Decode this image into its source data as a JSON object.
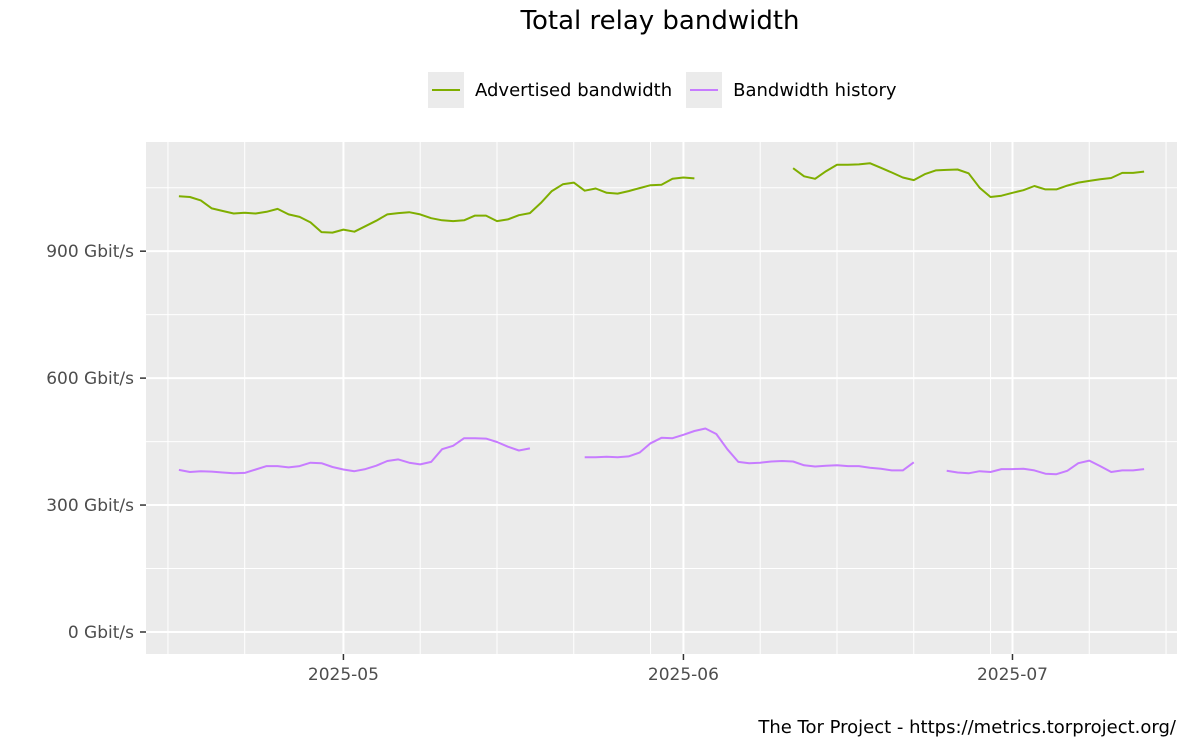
{
  "chart_data": {
    "type": "line",
    "title": "Total relay bandwidth",
    "xlabel": "",
    "ylabel": "",
    "x_ticks": [
      {
        "label": "2025-05",
        "date": "2025-05-01"
      },
      {
        "label": "2025-06",
        "date": "2025-06-01"
      },
      {
        "label": "2025-07",
        "date": "2025-07-01"
      }
    ],
    "y_ticks": [
      {
        "label": "0 Gbit/s",
        "value": 0
      },
      {
        "label": "300 Gbit/s",
        "value": 300
      },
      {
        "label": "600 Gbit/s",
        "value": 600
      },
      {
        "label": "900 Gbit/s",
        "value": 900
      }
    ],
    "xlim": [
      "2025-04-13",
      "2025-07-16"
    ],
    "ylim": [
      -52,
      1158
    ],
    "grid": true,
    "legend_position": "top",
    "series": [
      {
        "name": "Advertised bandwidth",
        "color": "#7fae00",
        "values": [
          [
            "2025-04-16",
            1030
          ],
          [
            "2025-04-17",
            1028
          ],
          [
            "2025-04-18",
            1020
          ],
          [
            "2025-04-19",
            1001
          ],
          [
            "2025-04-20",
            995
          ],
          [
            "2025-04-21",
            989
          ],
          [
            "2025-04-22",
            991
          ],
          [
            "2025-04-23",
            989
          ],
          [
            "2025-04-24",
            993
          ],
          [
            "2025-04-25",
            1000
          ],
          [
            "2025-04-26",
            987
          ],
          [
            "2025-04-27",
            981
          ],
          [
            "2025-04-28",
            968
          ],
          [
            "2025-04-29",
            945
          ],
          [
            "2025-04-30",
            944
          ],
          [
            "2025-05-01",
            951
          ],
          [
            "2025-05-02",
            946
          ],
          [
            "2025-05-03",
            959
          ],
          [
            "2025-05-04",
            972
          ],
          [
            "2025-05-05",
            987
          ],
          [
            "2025-05-06",
            990
          ],
          [
            "2025-05-07",
            992
          ],
          [
            "2025-05-08",
            987
          ],
          [
            "2025-05-09",
            978
          ],
          [
            "2025-05-10",
            973
          ],
          [
            "2025-05-11",
            971
          ],
          [
            "2025-05-12",
            973
          ],
          [
            "2025-05-13",
            984
          ],
          [
            "2025-05-14",
            984
          ],
          [
            "2025-05-15",
            971
          ],
          [
            "2025-05-16",
            975
          ],
          [
            "2025-05-17",
            985
          ],
          [
            "2025-05-18",
            990
          ],
          [
            "2025-05-19",
            1014
          ],
          [
            "2025-05-20",
            1042
          ],
          [
            "2025-05-21",
            1058
          ],
          [
            "2025-05-22",
            1062
          ],
          [
            "2025-05-23",
            1043
          ],
          [
            "2025-05-24",
            1048
          ],
          [
            "2025-05-25",
            1038
          ],
          [
            "2025-05-26",
            1036
          ],
          [
            "2025-05-27",
            1042
          ],
          [
            "2025-05-28",
            1049
          ],
          [
            "2025-05-29",
            1056
          ],
          [
            "2025-05-30",
            1057
          ],
          [
            "2025-05-31",
            1071
          ],
          [
            "2025-06-01",
            1074
          ],
          [
            "2025-06-02",
            1072
          ],
          [
            "2025-06-11",
            null
          ],
          [
            "2025-06-11",
            1096
          ],
          [
            "2025-06-12",
            1077
          ],
          [
            "2025-06-13",
            1071
          ],
          [
            "2025-06-14",
            1089
          ],
          [
            "2025-06-15",
            1104
          ],
          [
            "2025-06-16",
            1104
          ],
          [
            "2025-06-17",
            1105
          ],
          [
            "2025-06-18",
            1108
          ],
          [
            "2025-06-19",
            1097
          ],
          [
            "2025-06-20",
            1086
          ],
          [
            "2025-06-21",
            1074
          ],
          [
            "2025-06-22",
            1068
          ],
          [
            "2025-06-23",
            1082
          ],
          [
            "2025-06-24",
            1091
          ],
          [
            "2025-06-25",
            1092
          ],
          [
            "2025-06-26",
            1093
          ],
          [
            "2025-06-27",
            1084
          ],
          [
            "2025-06-28",
            1050
          ],
          [
            "2025-06-29",
            1028
          ],
          [
            "2025-06-30",
            1031
          ],
          [
            "2025-07-01",
            1038
          ],
          [
            "2025-07-02",
            1044
          ],
          [
            "2025-07-03",
            1054
          ],
          [
            "2025-07-04",
            1046
          ],
          [
            "2025-07-05",
            1046
          ],
          [
            "2025-07-06",
            1055
          ],
          [
            "2025-07-07",
            1062
          ],
          [
            "2025-07-08",
            1066
          ],
          [
            "2025-07-09",
            1070
          ],
          [
            "2025-07-10",
            1073
          ],
          [
            "2025-07-11",
            1085
          ],
          [
            "2025-07-12",
            1085
          ],
          [
            "2025-07-13",
            1088
          ]
        ]
      },
      {
        "name": "Bandwidth history",
        "color": "#c77cff",
        "values": [
          [
            "2025-04-16",
            383
          ],
          [
            "2025-04-17",
            378
          ],
          [
            "2025-04-18",
            380
          ],
          [
            "2025-04-19",
            379
          ],
          [
            "2025-04-20",
            377
          ],
          [
            "2025-04-21",
            375
          ],
          [
            "2025-04-22",
            376
          ],
          [
            "2025-04-23",
            384
          ],
          [
            "2025-04-24",
            392
          ],
          [
            "2025-04-25",
            392
          ],
          [
            "2025-04-26",
            389
          ],
          [
            "2025-04-27",
            392
          ],
          [
            "2025-04-28",
            400
          ],
          [
            "2025-04-29",
            399
          ],
          [
            "2025-04-30",
            390
          ],
          [
            "2025-05-01",
            384
          ],
          [
            "2025-05-02",
            380
          ],
          [
            "2025-05-03",
            385
          ],
          [
            "2025-05-04",
            393
          ],
          [
            "2025-05-05",
            404
          ],
          [
            "2025-05-06",
            408
          ],
          [
            "2025-05-07",
            400
          ],
          [
            "2025-05-08",
            396
          ],
          [
            "2025-05-09",
            402
          ],
          [
            "2025-05-10",
            432
          ],
          [
            "2025-05-11",
            440
          ],
          [
            "2025-05-12",
            458
          ],
          [
            "2025-05-13",
            458
          ],
          [
            "2025-05-14",
            457
          ],
          [
            "2025-05-15",
            449
          ],
          [
            "2025-05-16",
            438
          ],
          [
            "2025-05-17",
            429
          ],
          [
            "2025-05-18",
            434
          ],
          [
            "2025-05-23",
            null
          ],
          [
            "2025-05-23",
            413
          ],
          [
            "2025-05-24",
            413
          ],
          [
            "2025-05-25",
            414
          ],
          [
            "2025-05-26",
            413
          ],
          [
            "2025-05-27",
            415
          ],
          [
            "2025-05-28",
            424
          ],
          [
            "2025-05-29",
            446
          ],
          [
            "2025-05-30",
            459
          ],
          [
            "2025-05-31",
            458
          ],
          [
            "2025-06-01",
            466
          ],
          [
            "2025-06-02",
            475
          ],
          [
            "2025-06-03",
            481
          ],
          [
            "2025-06-04",
            468
          ],
          [
            "2025-06-05",
            432
          ],
          [
            "2025-06-06",
            402
          ],
          [
            "2025-06-07",
            399
          ],
          [
            "2025-06-08",
            400
          ],
          [
            "2025-06-09",
            403
          ],
          [
            "2025-06-10",
            404
          ],
          [
            "2025-06-11",
            403
          ],
          [
            "2025-06-12",
            394
          ],
          [
            "2025-06-13",
            391
          ],
          [
            "2025-06-14",
            393
          ],
          [
            "2025-06-15",
            394
          ],
          [
            "2025-06-16",
            392
          ],
          [
            "2025-06-17",
            392
          ],
          [
            "2025-06-18",
            388
          ],
          [
            "2025-06-19",
            386
          ],
          [
            "2025-06-20",
            382
          ],
          [
            "2025-06-21",
            382
          ],
          [
            "2025-06-22",
            401
          ],
          [
            "2025-06-25",
            null
          ],
          [
            "2025-06-25",
            381
          ],
          [
            "2025-06-26",
            377
          ],
          [
            "2025-06-27",
            375
          ],
          [
            "2025-06-28",
            380
          ],
          [
            "2025-06-29",
            378
          ],
          [
            "2025-06-30",
            385
          ],
          [
            "2025-07-01",
            385
          ],
          [
            "2025-07-02",
            386
          ],
          [
            "2025-07-03",
            382
          ],
          [
            "2025-07-04",
            374
          ],
          [
            "2025-07-05",
            373
          ],
          [
            "2025-07-06",
            381
          ],
          [
            "2025-07-07",
            399
          ],
          [
            "2025-07-08",
            405
          ],
          [
            "2025-07-09",
            392
          ],
          [
            "2025-07-10",
            378
          ],
          [
            "2025-07-11",
            382
          ],
          [
            "2025-07-12",
            382
          ],
          [
            "2025-07-13",
            385
          ]
        ]
      }
    ]
  },
  "footer": {
    "credit": "The Tor Project - https://metrics.torproject.org/"
  }
}
